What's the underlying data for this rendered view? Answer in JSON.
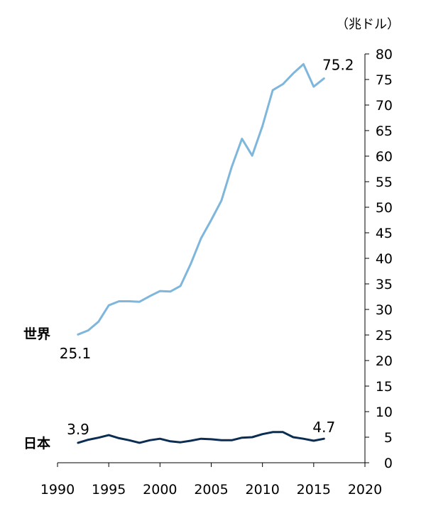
{
  "chart_data": {
    "type": "line",
    "unit": "（兆ドル）",
    "x": [
      1992,
      1993,
      1994,
      1995,
      1996,
      1997,
      1998,
      1999,
      2000,
      2001,
      2002,
      2003,
      2004,
      2005,
      2006,
      2007,
      2008,
      2009,
      2010,
      2011,
      2012,
      2013,
      2014,
      2015,
      2016
    ],
    "xlim": [
      1990,
      2020
    ],
    "xticks": [
      "1990",
      "1995",
      "2000",
      "2005",
      "2010",
      "2015",
      "2020"
    ],
    "ylim": [
      0,
      80
    ],
    "yticks": [
      "0",
      "5",
      "10",
      "15",
      "20",
      "25",
      "30",
      "35",
      "40",
      "45",
      "50",
      "55",
      "60",
      "65",
      "70",
      "75",
      "80"
    ],
    "series": [
      {
        "name": "世界",
        "color": "#7eb6dc",
        "values": [
          25.1,
          25.9,
          27.6,
          30.8,
          31.6,
          31.6,
          31.5,
          32.6,
          33.6,
          33.5,
          34.6,
          38.9,
          43.9,
          47.5,
          51.3,
          57.9,
          63.4,
          60.1,
          65.9,
          72.9,
          74.1,
          76.2,
          78.0,
          73.6,
          75.2
        ],
        "start_label": "25.1",
        "end_label": "75.2"
      },
      {
        "name": "日本",
        "color": "#0b2d52",
        "values": [
          3.9,
          4.5,
          4.9,
          5.4,
          4.8,
          4.4,
          3.9,
          4.4,
          4.7,
          4.2,
          4.0,
          4.3,
          4.7,
          4.6,
          4.4,
          4.4,
          4.9,
          5.0,
          5.6,
          6.0,
          6.0,
          5.0,
          4.7,
          4.3,
          4.7
        ],
        "start_label": "3.9",
        "end_label": "4.7"
      }
    ]
  }
}
